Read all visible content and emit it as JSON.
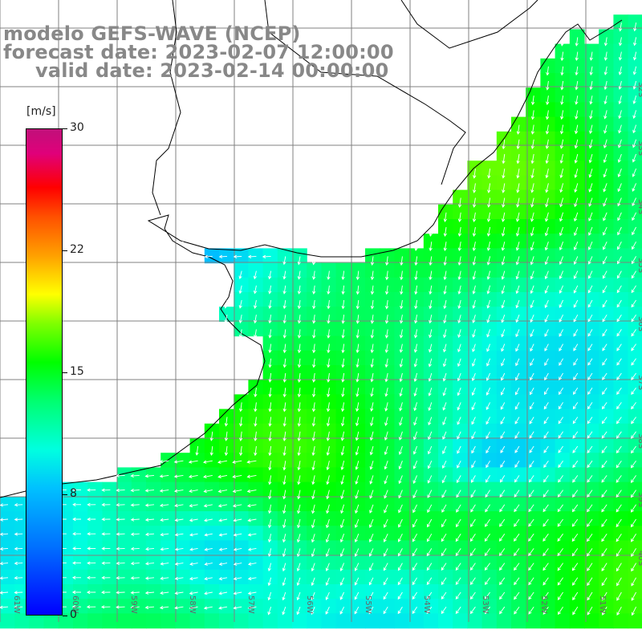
{
  "title": {
    "model": "modelo GEFS-WAVE (NCEP)",
    "forecast": "forecast date: 2023-02-07 12:00:00",
    "valid": "valid date: 2023-02-14 00:00:00"
  },
  "colorbar": {
    "unit": "[m/s]",
    "min": 0,
    "max": 30,
    "ticks": [
      "30",
      "22",
      "15",
      "8",
      "0"
    ],
    "colors": [
      "#0000ff",
      "#0070ff",
      "#00c0ff",
      "#00ffe0",
      "#00ff70",
      "#00ff00",
      "#80ff00",
      "#ffff00",
      "#ffa000",
      "#ff5000",
      "#ff0000",
      "#c0107a"
    ]
  },
  "map": {
    "field": "wind speed",
    "lat_labels": [
      "32S",
      "33S",
      "34S",
      "35S",
      "36S",
      "37S",
      "38S",
      "39S",
      "40S"
    ],
    "lon_labels": [
      "61W",
      "60W",
      "59W",
      "58W",
      "57W",
      "56W",
      "55W",
      "54W",
      "53W",
      "52W",
      "51W"
    ],
    "colors": {
      "land": "#ffffff",
      "grid": "#808080",
      "coast": "#000000",
      "arrows": "#ffffff",
      "title": "#888888"
    }
  }
}
